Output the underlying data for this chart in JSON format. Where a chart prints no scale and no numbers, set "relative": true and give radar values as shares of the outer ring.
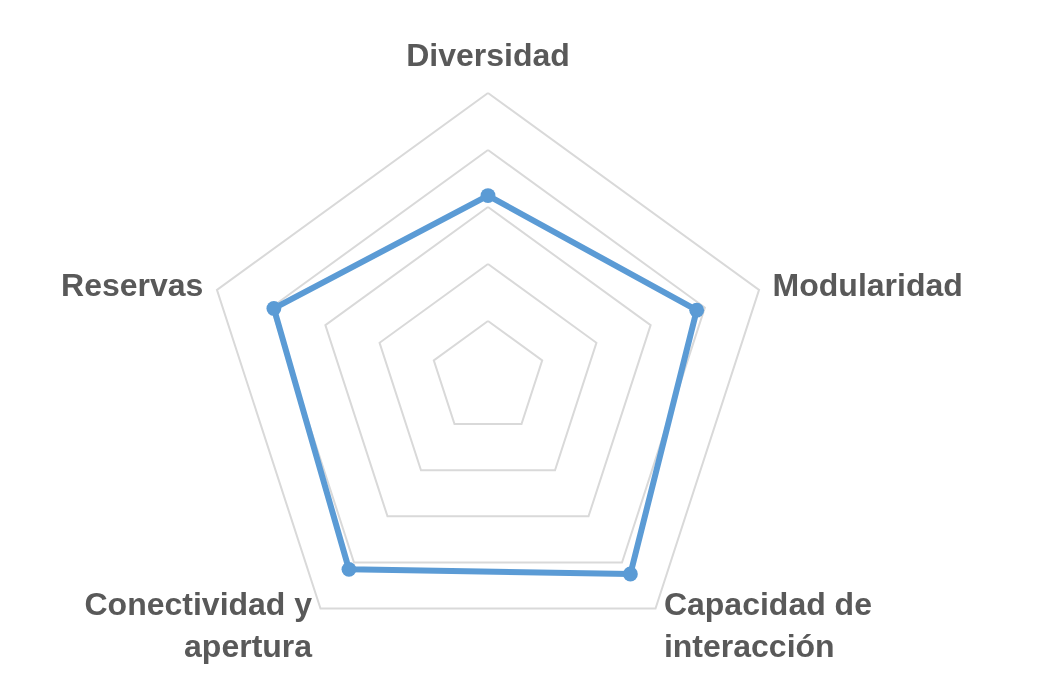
{
  "chart_data": {
    "type": "radar",
    "relative": true,
    "grid": true,
    "marker": "circle",
    "categories": [
      "Diversidad",
      "Modularidad",
      "Capacidad de interacción",
      "Conectividad y apertura",
      "Reservas"
    ],
    "series": [
      {
        "color": "#5b9bd5",
        "values": [
          0.64,
          0.77,
          0.85,
          0.83,
          0.79
        ]
      }
    ]
  }
}
